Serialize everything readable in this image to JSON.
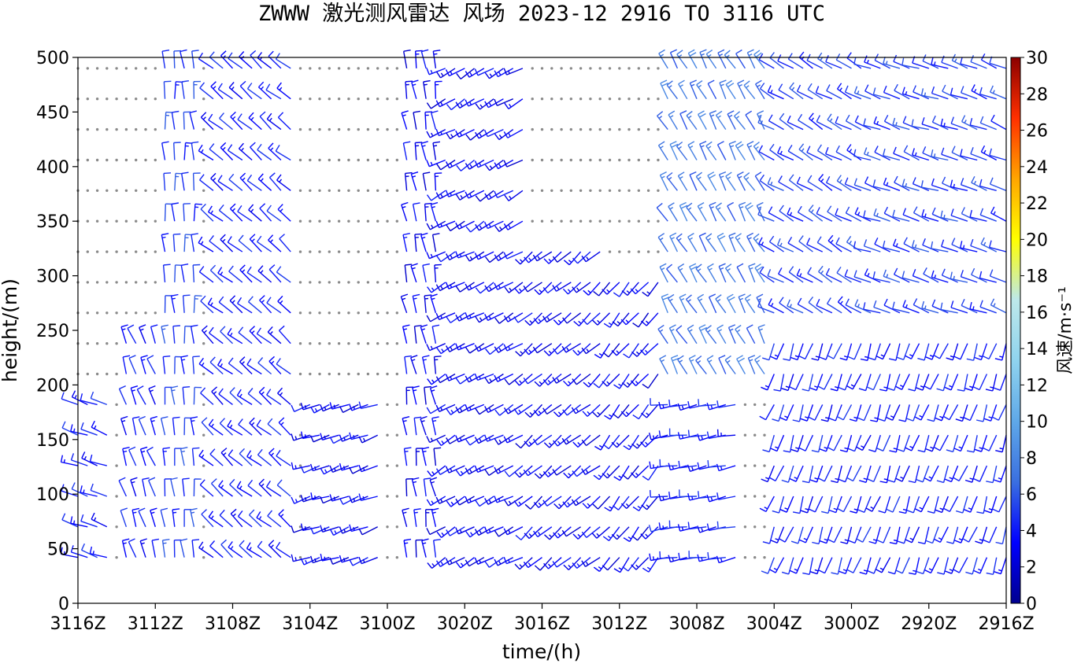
{
  "chart_data": {
    "type": "wind-barb",
    "title": "ZWWW  激光测风雷达 风场 2023-12 2916 TO 3116 UTC",
    "xlabel": "time/(h)",
    "ylabel": "height/(m)",
    "x_ticks": [
      "3116Z",
      "3112Z",
      "3108Z",
      "3104Z",
      "3100Z",
      "3020Z",
      "3016Z",
      "3012Z",
      "3008Z",
      "3004Z",
      "3000Z",
      "2920Z",
      "2916Z"
    ],
    "y_ticks": [
      0,
      50,
      100,
      150,
      200,
      250,
      300,
      350,
      400,
      450,
      500
    ],
    "ylim": [
      0,
      500
    ],
    "heights": [
      42,
      70,
      98,
      126,
      154,
      182,
      210,
      238,
      266,
      294,
      322,
      350,
      378,
      406,
      434,
      462,
      490
    ],
    "times_hours": [
      0,
      0.5,
      1,
      1.5,
      2,
      2.5,
      3,
      3.5,
      4,
      4.5,
      5,
      5.5,
      6,
      6.5,
      7,
      7.5,
      8,
      8.5,
      9,
      9.5,
      10,
      10.5,
      11,
      11.5,
      12,
      12.5,
      13,
      13.5,
      14,
      14.5,
      15,
      15.5,
      16,
      16.5,
      17,
      17.5,
      18,
      18.5,
      19,
      19.5,
      20,
      20.5,
      21,
      21.5,
      22,
      22.5,
      23,
      23.5,
      24,
      24.5,
      25,
      25.5,
      26,
      26.5,
      27,
      27.5,
      28,
      28.5,
      29,
      29.5,
      30,
      30.5,
      31,
      31.5,
      32,
      32.5,
      33,
      33.5,
      34,
      34.5,
      35,
      35.5,
      36,
      36.5,
      37,
      37.5,
      38,
      38.5,
      39,
      39.5,
      40,
      40.5,
      41,
      41.5,
      42,
      42.5,
      43,
      43.5,
      44,
      44.5,
      45,
      45.5,
      46,
      46.5,
      47,
      47.5,
      48
    ],
    "speed_range": [
      0,
      30
    ],
    "colorbar": {
      "label": "风速/m·s⁻¹",
      "ticks": [
        0,
        2,
        4,
        6,
        8,
        10,
        12,
        14,
        16,
        18,
        20,
        22,
        24,
        26,
        28,
        30
      ],
      "colors": [
        "#00008f",
        "#0000ff",
        "#3a6fe0",
        "#5fa8e8",
        "#8fd3ee",
        "#bde8ea",
        "#ffff00",
        "#ffa500",
        "#ff3000",
        "#8b0000"
      ]
    },
    "wind_regimes": [
      {
        "hours": [
          0,
          1.5
        ],
        "heights": [
          42,
          182
        ],
        "dir_deg": 290,
        "speed_ms": 4
      },
      {
        "hours": [
          2.5,
          4
        ],
        "heights": [
          42,
          238
        ],
        "dir_deg": 340,
        "speed_ms": 4
      },
      {
        "hours": [
          4.5,
          6
        ],
        "heights": [
          42,
          490
        ],
        "dir_deg": 355,
        "speed_ms": 5
      },
      {
        "hours": [
          7,
          11
        ],
        "heights": [
          42,
          490
        ],
        "dir_deg": 310,
        "speed_ms": 4
      },
      {
        "hours": [
          12,
          15.5
        ],
        "heights": [
          42,
          182
        ],
        "dir_deg": 250,
        "speed_ms": 3
      },
      {
        "hours": [
          17,
          18.5
        ],
        "heights": [
          42,
          490
        ],
        "dir_deg": 350,
        "speed_ms": 3
      },
      {
        "hours": [
          19,
          23
        ],
        "heights": [
          42,
          490
        ],
        "dir_deg": 240,
        "speed_ms": 3
      },
      {
        "hours": [
          23.5,
          27
        ],
        "heights": [
          42,
          322
        ],
        "dir_deg": 230,
        "speed_ms": 3
      },
      {
        "hours": [
          27.5,
          30
        ],
        "heights": [
          42,
          294
        ],
        "dir_deg": 220,
        "speed_ms": 3
      },
      {
        "hours": [
          30.5,
          34
        ],
        "heights": [
          42,
          182
        ],
        "dir_deg": 260,
        "speed_ms": 4
      },
      {
        "hours": [
          30.5,
          36
        ],
        "heights": [
          210,
          490
        ],
        "dir_deg": 330,
        "speed_ms": 7
      },
      {
        "hours": [
          36,
          41
        ],
        "heights": [
          238,
          490
        ],
        "dir_deg": 300,
        "speed_ms": 5
      },
      {
        "hours": [
          36,
          48
        ],
        "heights": [
          42,
          238
        ],
        "dir_deg": 200,
        "speed_ms": 4
      },
      {
        "hours": [
          41,
          48
        ],
        "heights": [
          266,
          490
        ],
        "dir_deg": 290,
        "speed_ms": 5
      }
    ],
    "legend": "none",
    "grid": false
  }
}
